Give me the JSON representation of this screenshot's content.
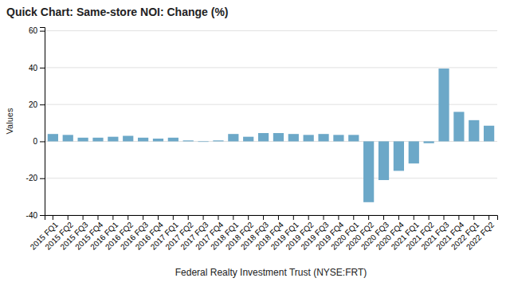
{
  "chart_data": {
    "type": "bar",
    "title": "Quick Chart: Same-store NOI: Change (%)",
    "xlabel": "Federal Realty Investment Trust (NYSE:FRT)",
    "ylabel": "Values",
    "categories": [
      "2015 FQ1",
      "2015 FQ2",
      "2015 FQ3",
      "2015 FQ4",
      "2016 FQ1",
      "2016 FQ2",
      "2016 FQ3",
      "2016 FQ4",
      "2017 FQ1",
      "2017 FQ2",
      "2017 FQ3",
      "2017 FQ4",
      "2018 FQ1",
      "2018 FQ2",
      "2018 FQ3",
      "2018 FQ4",
      "2019 FQ1",
      "2019 FQ2",
      "2019 FQ3",
      "2019 FQ4",
      "2020 FQ1",
      "2020 FQ2",
      "2020 FQ3",
      "2020 FQ4",
      "2021 FQ1",
      "2021 FQ2",
      "2021 FQ3",
      "2021 FQ4",
      "2022 FQ1",
      "2022 FQ2"
    ],
    "values": [
      4.0,
      3.5,
      2.0,
      2.0,
      2.5,
      3.0,
      2.0,
      1.5,
      2.0,
      0.5,
      -0.3,
      0.5,
      4.0,
      2.5,
      4.5,
      4.5,
      4.0,
      3.5,
      4.0,
      3.5,
      3.5,
      -33.0,
      -21.0,
      -16.0,
      -12.0,
      -1.0,
      39.5,
      16.0,
      11.5,
      8.5
    ],
    "color": "#6ca8c8",
    "ylim": [
      -40,
      62
    ],
    "yticks": [
      -40,
      -20,
      0,
      20,
      40,
      60
    ],
    "grid": true
  }
}
